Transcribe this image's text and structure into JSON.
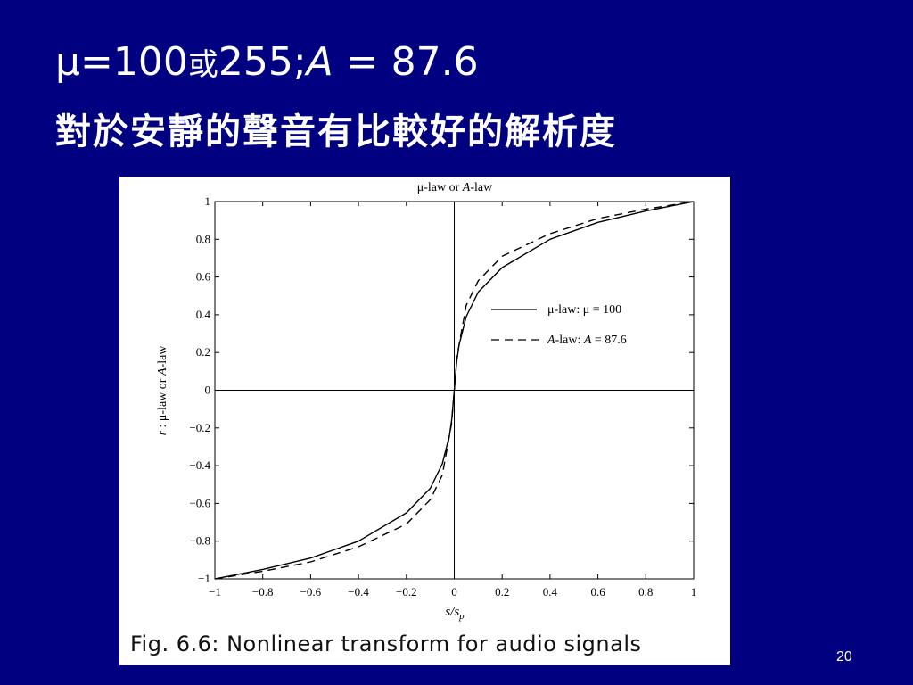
{
  "slide": {
    "title_line1_prefix": "μ=100",
    "title_line1_cjk": "或",
    "title_line1_mid": "255;",
    "title_line1_A": "A",
    "title_line1_suffix": " = 87.6",
    "title_line2": "對於安靜的聲音有比較好的解析度",
    "caption": "Fig. 6.6: Nonlinear transform for audio signals",
    "slide_number": "20"
  },
  "chart_data": {
    "type": "line",
    "title": "μ-law or A-law",
    "xlabel": "s/s_p",
    "ylabel": "r : μ-law or A-law",
    "xlim": [
      -1,
      1
    ],
    "ylim": [
      -1,
      1
    ],
    "xticks": [
      "−1",
      "−0.8",
      "−0.6",
      "−0.4",
      "−0.2",
      "0",
      "0.2",
      "0.4",
      "0.6",
      "0.8",
      "1"
    ],
    "xtick_values": [
      -1,
      -0.8,
      -0.6,
      -0.4,
      -0.2,
      0,
      0.2,
      0.4,
      0.6,
      0.8,
      1
    ],
    "yticks": [
      "1",
      "0.8",
      "0.6",
      "0.4",
      "0.2",
      "0",
      "−0.2",
      "−0.4",
      "−0.6",
      "−0.8",
      "−1"
    ],
    "ytick_values": [
      1,
      0.8,
      0.6,
      0.4,
      0.2,
      0,
      -0.2,
      -0.4,
      -0.6,
      -0.8,
      -1
    ],
    "grid": false,
    "legend_position": "center-right",
    "series": [
      {
        "name": "μ-law: μ = 100",
        "style": "solid",
        "x": [
          -1,
          -0.8,
          -0.6,
          -0.4,
          -0.2,
          -0.1,
          -0.05,
          -0.02,
          -0.01,
          0,
          0.01,
          0.02,
          0.05,
          0.1,
          0.2,
          0.4,
          0.6,
          0.8,
          1
        ],
        "y": [
          -1,
          -0.95,
          -0.89,
          -0.8,
          -0.65,
          -0.52,
          -0.39,
          -0.24,
          -0.15,
          0,
          0.15,
          0.24,
          0.39,
          0.52,
          0.65,
          0.8,
          0.89,
          0.95,
          1
        ]
      },
      {
        "name": "A-law: A = 87.6",
        "style": "dashed",
        "x": [
          -1,
          -0.8,
          -0.6,
          -0.4,
          -0.2,
          -0.1,
          -0.05,
          -0.0114,
          0,
          0.0114,
          0.05,
          0.1,
          0.2,
          0.4,
          0.6,
          0.8,
          1
        ],
        "y": [
          -1,
          -0.96,
          -0.91,
          -0.83,
          -0.71,
          -0.58,
          -0.45,
          -0.18,
          0,
          0.18,
          0.45,
          0.58,
          0.71,
          0.83,
          0.91,
          0.96,
          1
        ]
      }
    ]
  }
}
